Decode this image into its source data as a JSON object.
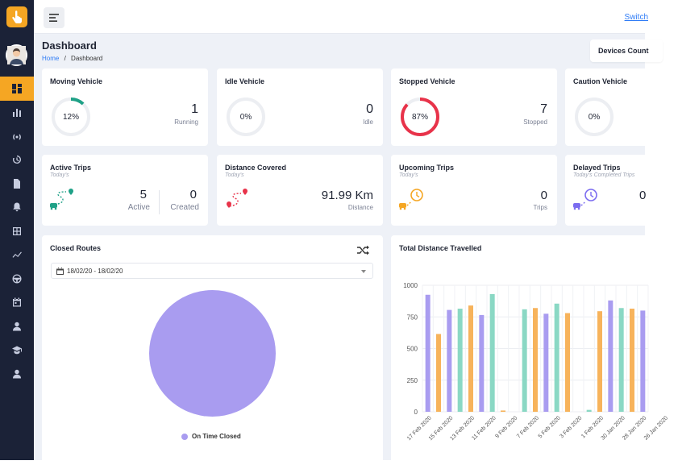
{
  "topbar": {
    "switch_label": "Switch"
  },
  "header": {
    "title": "Dashboard",
    "breadcrumb_home": "Home",
    "breadcrumb_sep": "/",
    "breadcrumb_current": "Dashboard",
    "devices_label": "Devices Count"
  },
  "status_cards": [
    {
      "title": "Moving Vehicle",
      "percent": 12,
      "percent_label": "12%",
      "count": "1",
      "label": "Running",
      "color": "#1fa187"
    },
    {
      "title": "Idle Vehicle",
      "percent": 0,
      "percent_label": "0%",
      "count": "0",
      "label": "Idle",
      "color": "#b8bfcc"
    },
    {
      "title": "Stopped Vehicle",
      "percent": 87,
      "percent_label": "87%",
      "count": "7",
      "label": "Stopped",
      "color": "#e8334a"
    },
    {
      "title": "Caution Vehicle",
      "percent": 0,
      "percent_label": "0%",
      "count": "",
      "label": "",
      "color": "#f5a623"
    }
  ],
  "trip_cards": {
    "active": {
      "title": "Active Trips",
      "sub": "Today's",
      "count": "5",
      "label": "Active",
      "count2": "0",
      "label2": "Created"
    },
    "distance": {
      "title": "Distance Covered",
      "sub": "Today's",
      "value": "91.99 Km",
      "label": "Distance"
    },
    "upcoming": {
      "title": "Upcoming Trips",
      "sub": "Today's",
      "count": "0",
      "label": "Trips"
    },
    "delayed": {
      "title": "Delayed Trips",
      "sub": "Today's Completed Trips",
      "count": "0"
    }
  },
  "closed_routes": {
    "title": "Closed Routes",
    "date_range": "18/02/20 - 18/02/20",
    "legend": "On Time Closed",
    "pie_color": "#a99cf0"
  },
  "chart_data": {
    "type": "bar",
    "title": "Total Distance Travelled",
    "ylim": [
      0,
      1000
    ],
    "yticks": [
      "0",
      "250",
      "500",
      "750",
      "1000"
    ],
    "grid": true,
    "categories": [
      "17 Feb 2020",
      "15 Feb 2020",
      "13 Feb 2020",
      "11 Feb 2020",
      "9 Feb 2020",
      "7 Feb 2020",
      "5 Feb 2020",
      "3 Feb 2020",
      "1 Feb 2020",
      "30 Jan 2020",
      "28 Jan 2020",
      "26 Jan 2020"
    ],
    "bars": [
      {
        "value": 925,
        "color": "#a99cf0"
      },
      {
        "value": 615,
        "color": "#f7b35b"
      },
      {
        "value": 805,
        "color": "#a99cf0"
      },
      {
        "value": 815,
        "color": "#8ad8c4"
      },
      {
        "value": 840,
        "color": "#f7b35b"
      },
      {
        "value": 765,
        "color": "#a99cf0"
      },
      {
        "value": 930,
        "color": "#8ad8c4"
      },
      {
        "value": 10,
        "color": "#f7b35b"
      },
      {
        "value": 0,
        "color": "#a99cf0"
      },
      {
        "value": 810,
        "color": "#8ad8c4"
      },
      {
        "value": 820,
        "color": "#f7b35b"
      },
      {
        "value": 775,
        "color": "#a99cf0"
      },
      {
        "value": 855,
        "color": "#8ad8c4"
      },
      {
        "value": 780,
        "color": "#f7b35b"
      },
      {
        "value": 0,
        "color": "#a99cf0"
      },
      {
        "value": 15,
        "color": "#8ad8c4"
      },
      {
        "value": 795,
        "color": "#f7b35b"
      },
      {
        "value": 880,
        "color": "#a99cf0"
      },
      {
        "value": 820,
        "color": "#8ad8c4"
      },
      {
        "value": 815,
        "color": "#f7b35b"
      },
      {
        "value": 800,
        "color": "#a99cf0"
      }
    ]
  }
}
